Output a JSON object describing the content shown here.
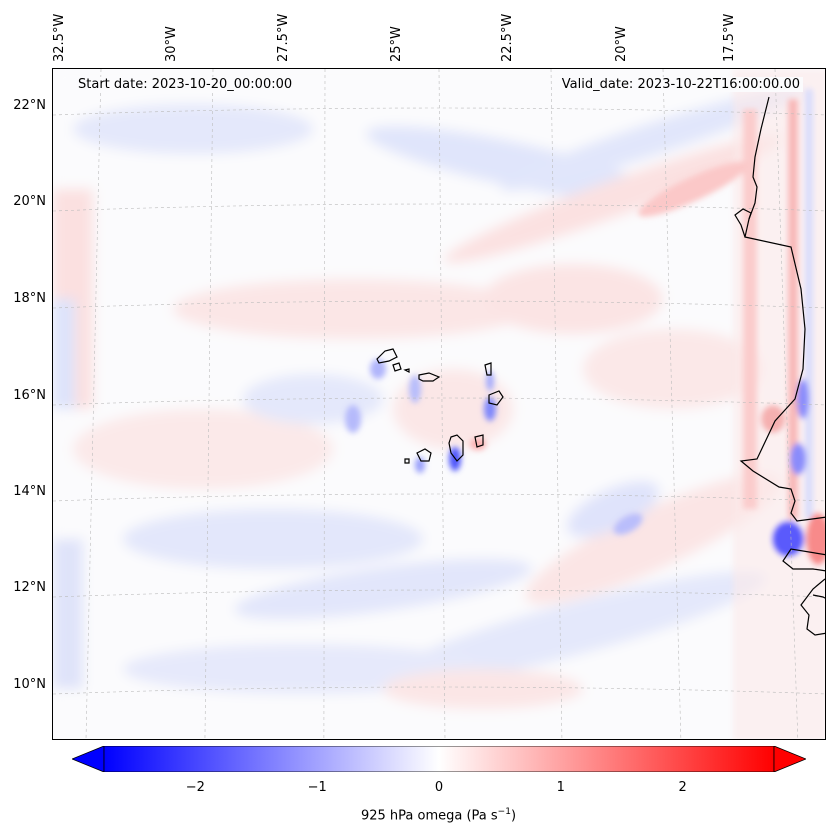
{
  "map": {
    "start_date": "Start date: 2023-10-20_00:00:00",
    "valid_date": "Valid_date: 2023-10-22T16:00:00.00",
    "lon_labels": [
      "32.5°W",
      "30°W",
      "27.5°W",
      "25°W",
      "22.5°W",
      "20°W",
      "17.5°W"
    ],
    "lat_labels": [
      "22°N",
      "20°N",
      "18°N",
      "16°N",
      "14°N",
      "12°N",
      "10°N"
    ],
    "field": "925 hPa omega",
    "region": "Cape Verde Islands and West African coast"
  },
  "colorbar": {
    "label_main": "925 hPa omega (Pa s",
    "label_exp": "−1",
    "label_close": ")",
    "ticks": [
      "−2",
      "−1",
      "0",
      "1",
      "2"
    ],
    "tick_values": [
      -2,
      -1,
      0,
      1,
      2
    ],
    "range": [
      -2.75,
      2.75
    ],
    "colormap": "bwr",
    "color_low": "#0000ff",
    "color_mid": "#ffffff",
    "color_high": "#ff0000",
    "extend": "both"
  }
}
